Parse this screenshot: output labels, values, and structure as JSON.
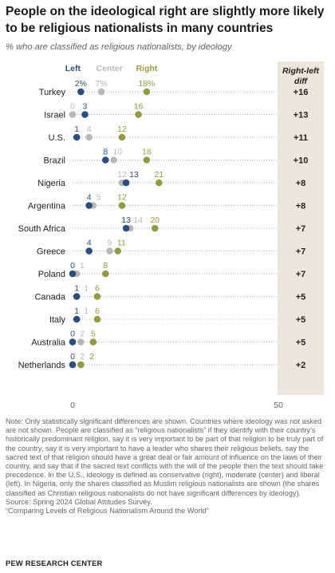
{
  "title": "People on the ideological right are slightly more likely to be religious nationalists in many countries",
  "subtitle": "% who are classified as religious nationalists, by ideology",
  "diff_header_line1": "Right-left",
  "diff_header_line2": "diff",
  "colors": {
    "left": "#2a4f7f",
    "center": "#b8b8b8",
    "right": "#949a41",
    "diff_panel": "#ece7dc"
  },
  "chart_data": {
    "type": "scatter",
    "subtype": "dot-plot",
    "series": [
      {
        "name": "Left",
        "values": [
          2,
          3,
          1,
          8,
          13,
          4,
          13,
          4,
          0,
          1,
          1,
          0,
          0
        ]
      },
      {
        "name": "Center",
        "values": [
          7,
          0,
          4,
          10,
          12,
          5,
          14,
          9,
          1,
          1,
          1,
          2,
          2
        ]
      },
      {
        "name": "Right",
        "values": [
          18,
          16,
          12,
          18,
          21,
          12,
          20,
          11,
          8,
          6,
          6,
          5,
          2
        ]
      }
    ],
    "categories": [
      "Turkey",
      "Israel",
      "U.S.",
      "Brazil",
      "Nigeria",
      "Argentina",
      "South Africa",
      "Greece",
      "Poland",
      "Canada",
      "Italy",
      "Australia",
      "Netherlands"
    ],
    "diff": [
      "+16",
      "+13",
      "+11",
      "+10",
      "+8",
      "+8",
      "+7",
      "+7",
      "+7",
      "+5",
      "+5",
      "+5",
      "+2"
    ],
    "value_labels": [
      [
        "2%",
        "7%",
        "18%"
      ],
      [
        "3",
        "0",
        "16"
      ],
      [
        "1",
        "4",
        "12"
      ],
      [
        "8",
        "10",
        "18"
      ],
      [
        "13",
        "12",
        "21"
      ],
      [
        "4",
        "5",
        "12"
      ],
      [
        "13",
        "14",
        "20"
      ],
      [
        "4",
        "9",
        "11"
      ],
      [
        "0",
        "1",
        "8"
      ],
      [
        "1",
        "1",
        "6"
      ],
      [
        "1",
        "1",
        "6"
      ],
      [
        "0",
        "2",
        "5"
      ],
      [
        "0",
        "2",
        "2"
      ]
    ],
    "axis_ticks": [
      "0",
      "50"
    ],
    "xlim": [
      0,
      50
    ]
  },
  "note_lines": [
    "Note: Only statistically significant differences are shown. Countries where ideology was not asked are not shown. People are classified as “religious nationalists” if they identify with their country’s historically predominant religion, say it is very important to be part of that religion to be truly part of the country, say it is very important to have a leader who shares their religious beliefs, say the sacred text of that religion should have a great deal or fair amount of influence on the laws of their country, and say that if the sacred text conflicts with the will of the people then the text should take precedence. In the U.S., ideology is defined as conservative (right), moderate (center) and liberal (left). In Nigeria, only the shares classified as Muslim religious nationalists are shown (the shares classified as Christian religious nationalists do not have significant differences by ideology).",
    "Source: Spring 2024 Global Attitudes Survey.",
    "“Comparing Levels of Religious Nationalism Around the World”"
  ],
  "brand": "PEW RESEARCH CENTER"
}
